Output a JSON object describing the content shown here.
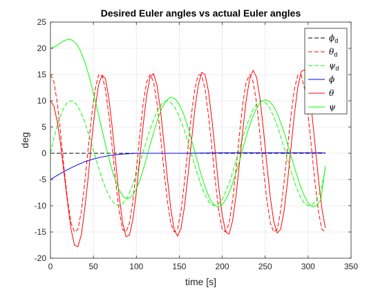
{
  "chart_data": {
    "type": "line",
    "title": "Desired Euler angles vs actual Euler angles",
    "xlabel": "time [s]",
    "ylabel": "deg",
    "xlim": [
      0,
      350
    ],
    "ylim": [
      -20,
      25
    ],
    "xticks": [
      0,
      50,
      100,
      150,
      200,
      250,
      300,
      350
    ],
    "yticks": [
      -20,
      -15,
      -10,
      -5,
      0,
      5,
      10,
      15,
      20,
      25
    ],
    "grid": true,
    "legend_position": "top-right",
    "series": [
      {
        "name": "ϕd",
        "label_main": "ϕ",
        "label_sub": "d",
        "color": "#000000",
        "dash": "dashed",
        "x": [
          0,
          50,
          100,
          150,
          200,
          250,
          300,
          320
        ],
        "y": [
          0,
          0,
          0,
          0,
          0,
          0,
          0,
          0
        ]
      },
      {
        "name": "θd",
        "label_main": "θ",
        "label_sub": "d",
        "color": "#ff0000",
        "dash": "dashed",
        "x": [
          0,
          4,
          8,
          12,
          16,
          20,
          24,
          28,
          32,
          36,
          40,
          44,
          48,
          52,
          56,
          60,
          64,
          68,
          72,
          76,
          80,
          84,
          88,
          92,
          96,
          100,
          104,
          108,
          112,
          116,
          120,
          124,
          128,
          132,
          136,
          140,
          144,
          148,
          152,
          156,
          160,
          164,
          168,
          172,
          176,
          180,
          184,
          188,
          192,
          196,
          200,
          204,
          208,
          212,
          216,
          220,
          224,
          228,
          232,
          236,
          240,
          244,
          248,
          252,
          256,
          260,
          264,
          268,
          272,
          276,
          280,
          284,
          288,
          292,
          296,
          300,
          304,
          308,
          312,
          316,
          320
        ],
        "y": [
          15.0,
          13.6,
          9.6,
          3.5,
          -3.1,
          -9.0,
          -13.3,
          -15.0,
          -14.5,
          -11.0,
          -5.5,
          1.0,
          7.2,
          12.2,
          14.9,
          14.9,
          12.2,
          7.2,
          1.0,
          -5.5,
          -11.0,
          -14.5,
          -15.0,
          -13.3,
          -9.0,
          -3.1,
          3.5,
          9.6,
          13.6,
          15.0,
          13.6,
          9.6,
          3.5,
          -3.1,
          -9.0,
          -13.3,
          -15.0,
          -14.5,
          -11.0,
          -5.5,
          1.0,
          7.2,
          12.2,
          14.9,
          14.9,
          12.2,
          7.2,
          1.0,
          -5.5,
          -11.0,
          -14.5,
          -15.0,
          -13.3,
          -9.0,
          -3.1,
          3.5,
          9.6,
          13.6,
          15.0,
          13.6,
          9.6,
          3.5,
          -3.1,
          -9.0,
          -13.3,
          -15.0,
          -14.5,
          -11.0,
          -5.5,
          1.0,
          7.2,
          12.2,
          14.9,
          14.9,
          12.2,
          7.2,
          1.0,
          -5.5,
          -11.0,
          -14.5,
          -15.0
        ]
      },
      {
        "name": "ψd",
        "label_main": "ψ",
        "label_sub": "d",
        "color": "#00ff00",
        "dash": "dashed",
        "x": [
          0,
          5,
          10,
          15,
          20,
          25,
          30,
          35,
          40,
          45,
          50,
          55,
          60,
          65,
          70,
          75,
          80,
          85,
          90,
          95,
          100,
          105,
          110,
          115,
          120,
          125,
          130,
          135,
          140,
          145,
          150,
          155,
          160,
          165,
          170,
          175,
          180,
          185,
          190,
          195,
          200,
          205,
          210,
          215,
          220,
          225,
          230,
          235,
          240,
          245,
          250,
          255,
          260,
          265,
          270,
          275,
          280,
          285,
          290,
          295,
          300,
          305,
          310,
          315,
          320
        ],
        "y": [
          0.0,
          3.5,
          6.5,
          8.5,
          9.8,
          10.0,
          9.4,
          8.0,
          5.9,
          3.4,
          0.6,
          -2.2,
          -4.8,
          -7.0,
          -8.7,
          -9.7,
          -10.0,
          -9.5,
          -8.3,
          -6.4,
          -4.1,
          -1.4,
          1.4,
          4.1,
          6.4,
          8.3,
          9.5,
          10.0,
          9.7,
          8.7,
          7.0,
          4.8,
          2.2,
          -0.6,
          -3.4,
          -5.9,
          -8.0,
          -9.4,
          -10.0,
          -9.8,
          -8.8,
          -7.0,
          -4.8,
          -2.0,
          0.8,
          3.6,
          6.0,
          8.0,
          9.4,
          10.0,
          9.7,
          8.7,
          7.0,
          4.8,
          2.2,
          -0.6,
          -3.4,
          -5.9,
          -8.0,
          -9.4,
          -10.0,
          -9.8,
          -8.8,
          -7.0,
          -3.0
        ]
      },
      {
        "name": "ϕ",
        "label_main": "ϕ",
        "label_sub": "",
        "color": "#0000ff",
        "dash": "solid",
        "x": [
          0,
          10,
          20,
          30,
          40,
          50,
          60,
          70,
          80,
          90,
          100,
          120,
          150,
          200,
          250,
          300,
          320
        ],
        "y": [
          -5.0,
          -4.0,
          -3.1,
          -2.3,
          -1.6,
          -1.1,
          -0.7,
          -0.4,
          -0.2,
          -0.1,
          0.0,
          0.0,
          0.0,
          0.1,
          0.1,
          0.1,
          0.1
        ]
      },
      {
        "name": "θ",
        "label_main": "θ",
        "label_sub": "",
        "color": "#ff0000",
        "dash": "solid",
        "x": [
          0,
          4,
          8,
          12,
          16,
          20,
          24,
          28,
          32,
          36,
          40,
          44,
          48,
          52,
          56,
          60,
          64,
          68,
          72,
          76,
          80,
          84,
          88,
          92,
          96,
          100,
          104,
          108,
          112,
          116,
          120,
          124,
          128,
          132,
          136,
          140,
          144,
          148,
          152,
          156,
          160,
          164,
          168,
          172,
          176,
          180,
          184,
          188,
          192,
          196,
          200,
          204,
          208,
          212,
          216,
          220,
          224,
          228,
          232,
          236,
          240,
          244,
          248,
          252,
          256,
          260,
          264,
          268,
          272,
          276,
          280,
          284,
          288,
          292,
          296,
          300,
          304,
          308,
          312,
          316,
          320
        ],
        "y": [
          10.0,
          9.0,
          6.0,
          1.5,
          -4.0,
          -9.5,
          -14.5,
          -17.5,
          -17.8,
          -15.5,
          -10.5,
          -4.5,
          2.5,
          8.5,
          13.0,
          14.9,
          14.2,
          10.5,
          4.8,
          -1.8,
          -8.2,
          -13.2,
          -15.9,
          -15.6,
          -12.6,
          -7.4,
          -1.0,
          5.5,
          11.0,
          14.5,
          15.2,
          13.0,
          8.4,
          2.2,
          -4.5,
          -10.4,
          -14.5,
          -15.8,
          -14.3,
          -10.2,
          -4.4,
          2.0,
          8.2,
          12.9,
          15.4,
          15.0,
          11.8,
          6.4,
          0.0,
          -6.5,
          -11.8,
          -15.0,
          -15.4,
          -12.9,
          -8.2,
          -2.0,
          4.4,
          10.2,
          14.3,
          15.8,
          14.5,
          10.4,
          4.5,
          -2.2,
          -8.4,
          -13.0,
          -15.2,
          -14.5,
          -11.0,
          -5.5,
          1.0,
          7.4,
          12.6,
          15.6,
          15.9,
          13.2,
          8.2,
          1.8,
          -4.8,
          -10.5,
          -14.2
        ]
      },
      {
        "name": "ψ",
        "label_main": "ψ",
        "label_sub": "",
        "color": "#00ff00",
        "dash": "solid",
        "x": [
          0,
          5,
          10,
          15,
          20,
          25,
          30,
          35,
          40,
          45,
          50,
          55,
          60,
          65,
          70,
          75,
          80,
          85,
          90,
          95,
          100,
          105,
          110,
          115,
          120,
          125,
          130,
          135,
          140,
          145,
          150,
          155,
          160,
          165,
          170,
          175,
          180,
          185,
          190,
          195,
          200,
          205,
          210,
          215,
          220,
          225,
          230,
          235,
          240,
          245,
          250,
          255,
          260,
          265,
          270,
          275,
          280,
          285,
          290,
          295,
          300,
          305,
          310,
          315,
          320
        ],
        "y": [
          20.0,
          20.3,
          20.8,
          21.4,
          21.7,
          21.6,
          20.9,
          19.5,
          17.4,
          14.7,
          11.5,
          8.0,
          4.5,
          1.0,
          -2.2,
          -4.9,
          -7.0,
          -8.3,
          -8.7,
          -8.2,
          -6.8,
          -4.7,
          -2.0,
          1.0,
          3.9,
          6.6,
          8.7,
          10.1,
          10.7,
          10.4,
          9.3,
          7.5,
          5.0,
          2.1,
          -0.9,
          -3.8,
          -6.4,
          -8.5,
          -9.8,
          -10.2,
          -9.8,
          -8.6,
          -6.7,
          -4.3,
          -1.5,
          1.5,
          4.3,
          6.7,
          8.6,
          9.8,
          10.2,
          9.9,
          8.9,
          7.2,
          5.0,
          2.4,
          -0.4,
          -3.2,
          -5.8,
          -7.9,
          -9.5,
          -10.2,
          -10.0,
          -8.8,
          -2.5
        ]
      }
    ]
  }
}
